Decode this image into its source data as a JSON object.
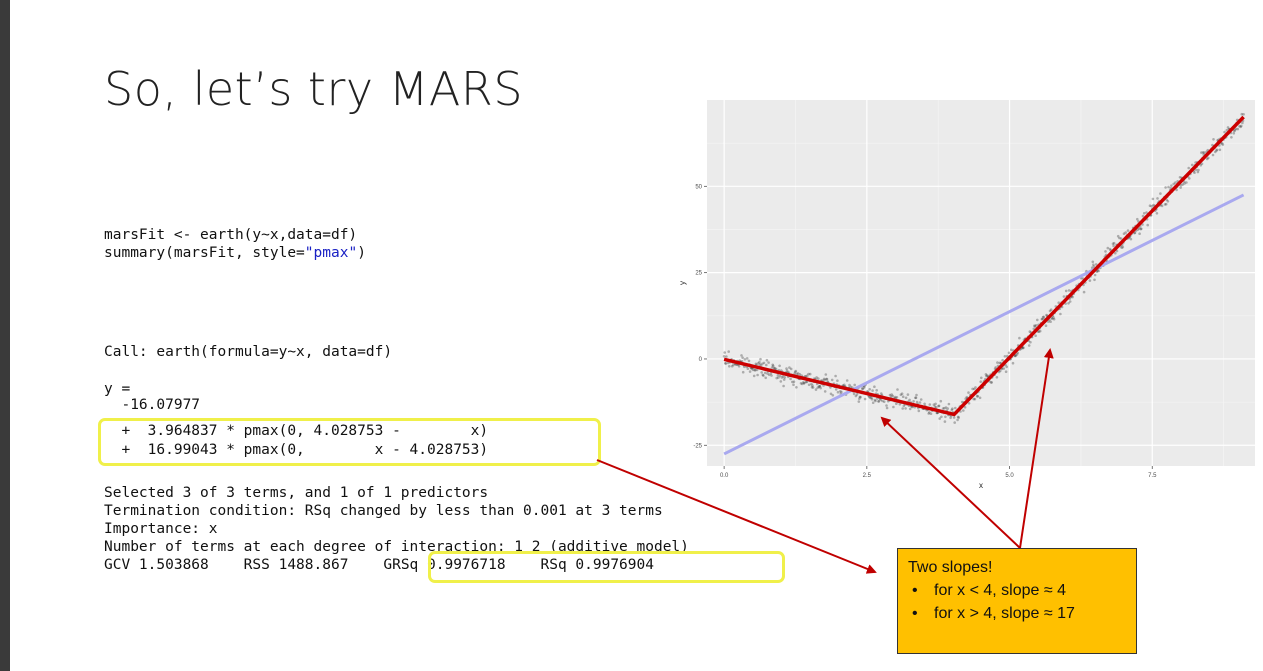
{
  "slide": {
    "title": "So, let’s try MARS"
  },
  "code_input": {
    "line1": "marsFit <- earth(y~x,data=df)",
    "line2_pre": "summary(marsFit, style=",
    "line2_str": "\"pmax\"",
    "line2_post": ")"
  },
  "output": {
    "call": "Call: earth(formula=y~x, data=df)",
    "y_eq": "y =",
    "intercept": "  -16.07977",
    "term1": "  +  3.964837 * pmax(0, 4.028753 -        x)",
    "term2": "  +  16.99043 * pmax(0,        x - 4.028753)",
    "selected": "Selected 3 of 3 terms, and 1 of 1 predictors",
    "termination": "Termination condition: RSq changed by less than 0.001 at 3 terms",
    "importance": "Importance: x",
    "degree": "Number of terms at each degree of interaction: 1 2 (additive model)",
    "gcv": "GCV 1.503868    RSS 1488.867    ",
    "grsq": "GRSq 0.9976718    RSq 0.9976904"
  },
  "callout": {
    "title": "Two slopes!",
    "bullet": "•",
    "item1": "for x < 4, slope ≈ 4",
    "item2": "for x > 4, slope ≈ 17"
  },
  "chart_data": {
    "type": "scatter",
    "xlabel": "x",
    "ylabel": "y",
    "xlim": [
      -0.3,
      9.3
    ],
    "ylim": [
      -31,
      75
    ],
    "x_ticks": [
      0.0,
      2.5,
      5.0,
      7.5
    ],
    "x_tick_labels": [
      "0.0",
      "2.5",
      "5.0",
      "7.5"
    ],
    "y_ticks": [
      -25,
      0,
      25,
      50
    ],
    "y_tick_labels": [
      "-25",
      "0",
      "25",
      "50"
    ],
    "grid": true,
    "knot": 4.028753,
    "intercept": -16.07977,
    "coef_left": 3.964837,
    "coef_right": 16.99043,
    "linear_fit": {
      "x": [
        0,
        9.1
      ],
      "y": [
        -27.5,
        47.5
      ],
      "color": "#a9a9ef"
    },
    "mars_fit_color": "#cc0000",
    "point_color": "#333333",
    "background_color": "#ebebeb"
  }
}
